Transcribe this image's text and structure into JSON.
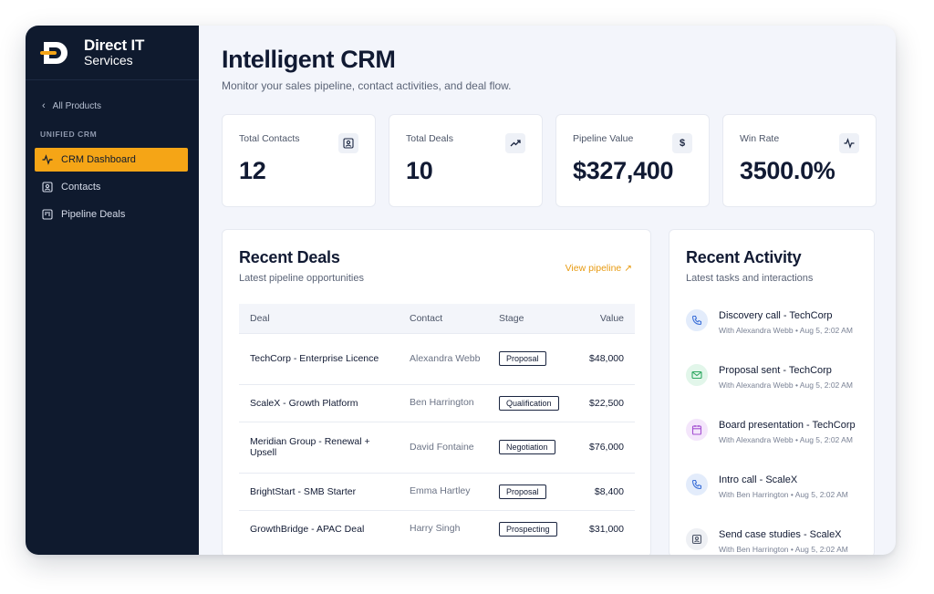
{
  "brand": {
    "name": "Direct IT",
    "sub": "Services"
  },
  "sidebar": {
    "back_label": "All Products",
    "section_label": "UNIFIED CRM",
    "items": [
      {
        "label": "CRM Dashboard",
        "icon": "pulse-icon",
        "active": true
      },
      {
        "label": "Contacts",
        "icon": "contact-card-icon",
        "active": false
      },
      {
        "label": "Pipeline Deals",
        "icon": "kanban-icon",
        "active": false
      }
    ]
  },
  "header": {
    "title": "Intelligent CRM",
    "subtitle": "Monitor your sales pipeline, contact activities, and deal flow."
  },
  "stats": [
    {
      "label": "Total Contacts",
      "value": "12",
      "icon": "contact-card-icon"
    },
    {
      "label": "Total Deals",
      "value": "10",
      "icon": "trending-up-icon"
    },
    {
      "label": "Pipeline Value",
      "value": "$327,400",
      "icon": "dollar-icon"
    },
    {
      "label": "Win Rate",
      "value": "3500.0%",
      "icon": "pulse-icon"
    }
  ],
  "deals": {
    "title": "Recent Deals",
    "subtitle": "Latest pipeline opportunities",
    "link": "View pipeline ↗",
    "columns": [
      "Deal",
      "Contact",
      "Stage",
      "Value"
    ],
    "rows": [
      {
        "deal": "TechCorp - Enterprise Licence",
        "contact": "Alexandra Webb",
        "stage": "Proposal",
        "value": "$48,000"
      },
      {
        "deal": "ScaleX - Growth Platform",
        "contact": "Ben Harrington",
        "stage": "Qualification",
        "value": "$22,500"
      },
      {
        "deal": "Meridian Group - Renewal + Upsell",
        "contact": "David Fontaine",
        "stage": "Negotiation",
        "value": "$76,000"
      },
      {
        "deal": "BrightStart - SMB Starter",
        "contact": "Emma Hartley",
        "stage": "Proposal",
        "value": "$8,400"
      },
      {
        "deal": "GrowthBridge - APAC Deal",
        "contact": "Harry Singh",
        "stage": "Prospecting",
        "value": "$31,000"
      }
    ]
  },
  "activity": {
    "title": "Recent Activity",
    "subtitle": "Latest tasks and interactions",
    "items": [
      {
        "title": "Discovery call - TechCorp",
        "meta": "With Alexandra Webb • Aug 5, 2:02 AM",
        "icon": "phone-icon",
        "color": "#e3ecfb",
        "stroke": "#3b6fd8"
      },
      {
        "title": "Proposal sent - TechCorp",
        "meta": "With Alexandra Webb • Aug 5, 2:02 AM",
        "icon": "mail-icon",
        "color": "#e2f6ea",
        "stroke": "#2fa862"
      },
      {
        "title": "Board presentation - TechCorp",
        "meta": "With Alexandra Webb • Aug 5, 2:02 AM",
        "icon": "calendar-icon",
        "color": "#f4e6fb",
        "stroke": "#a34fd1"
      },
      {
        "title": "Intro call - ScaleX",
        "meta": "With Ben Harrington • Aug 5, 2:02 AM",
        "icon": "phone-icon",
        "color": "#e3ecfb",
        "stroke": "#3b6fd8"
      },
      {
        "title": "Send case studies - ScaleX",
        "meta": "With Ben Harrington • Aug 5, 2:02 AM",
        "icon": "contact-card-icon",
        "color": "#eef0f4",
        "stroke": "#4c5568"
      }
    ]
  },
  "colors": {
    "accent": "#f5a516",
    "sidebar": "#0f1a2e",
    "background": "#f3f5fb"
  }
}
